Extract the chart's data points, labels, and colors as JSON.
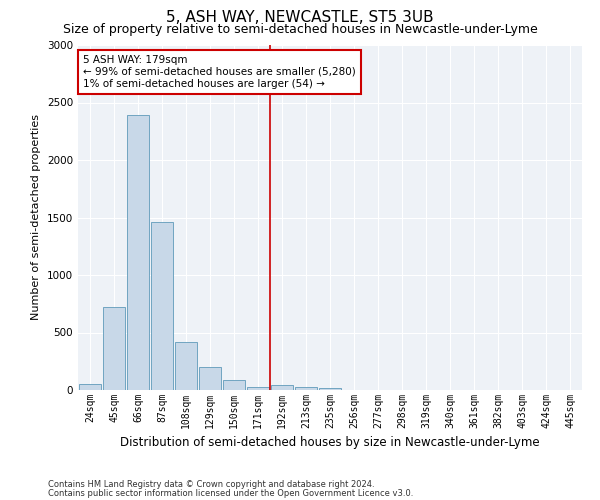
{
  "title": "5, ASH WAY, NEWCASTLE, ST5 3UB",
  "subtitle": "Size of property relative to semi-detached houses in Newcastle-under-Lyme",
  "xlabel": "Distribution of semi-detached houses by size in Newcastle-under-Lyme",
  "ylabel": "Number of semi-detached properties",
  "footer1": "Contains HM Land Registry data © Crown copyright and database right 2024.",
  "footer2": "Contains public sector information licensed under the Open Government Licence v3.0.",
  "categories": [
    "24sqm",
    "45sqm",
    "66sqm",
    "87sqm",
    "108sqm",
    "129sqm",
    "150sqm",
    "171sqm",
    "192sqm",
    "213sqm",
    "235sqm",
    "256sqm",
    "277sqm",
    "298sqm",
    "319sqm",
    "340sqm",
    "361sqm",
    "382sqm",
    "403sqm",
    "424sqm",
    "445sqm"
  ],
  "values": [
    55,
    720,
    2390,
    1460,
    415,
    200,
    90,
    30,
    45,
    25,
    20,
    0,
    0,
    0,
    0,
    0,
    0,
    0,
    0,
    0,
    0
  ],
  "bar_color": "#c8d8e8",
  "bar_edge_color": "#5f9aba",
  "vline_color": "#cc0000",
  "vline_x_index": 7,
  "annotation_text": "5 ASH WAY: 179sqm\n← 99% of semi-detached houses are smaller (5,280)\n1% of semi-detached houses are larger (54) →",
  "annotation_box_color": "#ffffff",
  "annotation_box_edge_color": "#cc0000",
  "ylim": [
    0,
    3000
  ],
  "yticks": [
    0,
    500,
    1000,
    1500,
    2000,
    2500,
    3000
  ],
  "bg_color": "#eef2f7",
  "grid_color": "#ffffff",
  "fig_bg_color": "#ffffff",
  "title_fontsize": 11,
  "subtitle_fontsize": 9,
  "tick_fontsize": 7,
  "ylabel_fontsize": 8,
  "xlabel_fontsize": 8.5,
  "footer_fontsize": 6,
  "annot_fontsize": 7.5
}
